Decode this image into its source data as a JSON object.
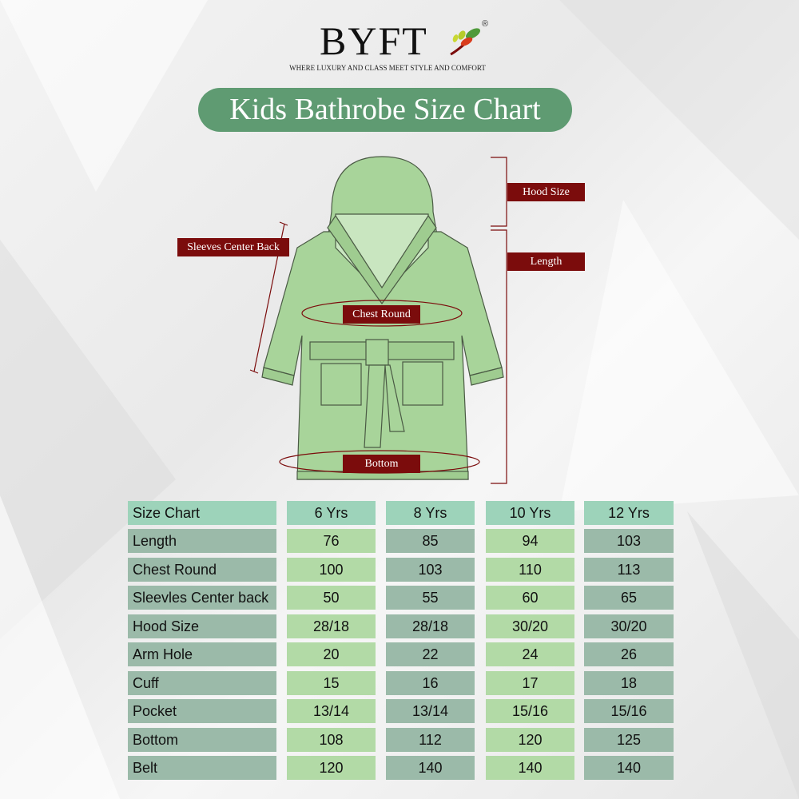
{
  "brand": {
    "name": "BYFT",
    "registered": "®",
    "tagline": "WHERE LUXURY AND CLASS MEET STYLE AND COMFORT"
  },
  "title": "Kids Bathrobe Size Chart",
  "diagram_labels": {
    "hood_size": "Hood Size",
    "length": "Length",
    "sleeves": "Sleeves Center Back",
    "chest": "Chest Round",
    "bottom": "Bottom"
  },
  "colors": {
    "title_bg": "#5f9b72",
    "tag_bg": "#7b0c0c",
    "header": "#9dd3ba",
    "label_col": "#9bbaa9",
    "light_col": "#b2daa6",
    "robe": "#a8d49a"
  },
  "table": {
    "headers": [
      "Size Chart",
      "6 Yrs",
      "8 Yrs",
      "10 Yrs",
      "12 Yrs"
    ],
    "rows": [
      {
        "label": "Length",
        "values": [
          "76",
          "85",
          "94",
          "103"
        ]
      },
      {
        "label": "Chest Round",
        "values": [
          "100",
          "103",
          "110",
          "113"
        ]
      },
      {
        "label": "Sleevles Center back",
        "values": [
          "50",
          "55",
          "60",
          "65"
        ]
      },
      {
        "label": "Hood Size",
        "values": [
          "28/18",
          "28/18",
          "30/20",
          "30/20"
        ]
      },
      {
        "label": "Arm Hole",
        "values": [
          "20",
          "22",
          "24",
          "26"
        ]
      },
      {
        "label": "Cuff",
        "values": [
          "15",
          "16",
          "17",
          "18"
        ]
      },
      {
        "label": "Pocket",
        "values": [
          "13/14",
          "13/14",
          "15/16",
          "15/16"
        ]
      },
      {
        "label": "Bottom",
        "values": [
          "108",
          "112",
          "120",
          "125"
        ]
      },
      {
        "label": "Belt",
        "values": [
          "120",
          "140",
          "140",
          "140"
        ]
      }
    ]
  }
}
